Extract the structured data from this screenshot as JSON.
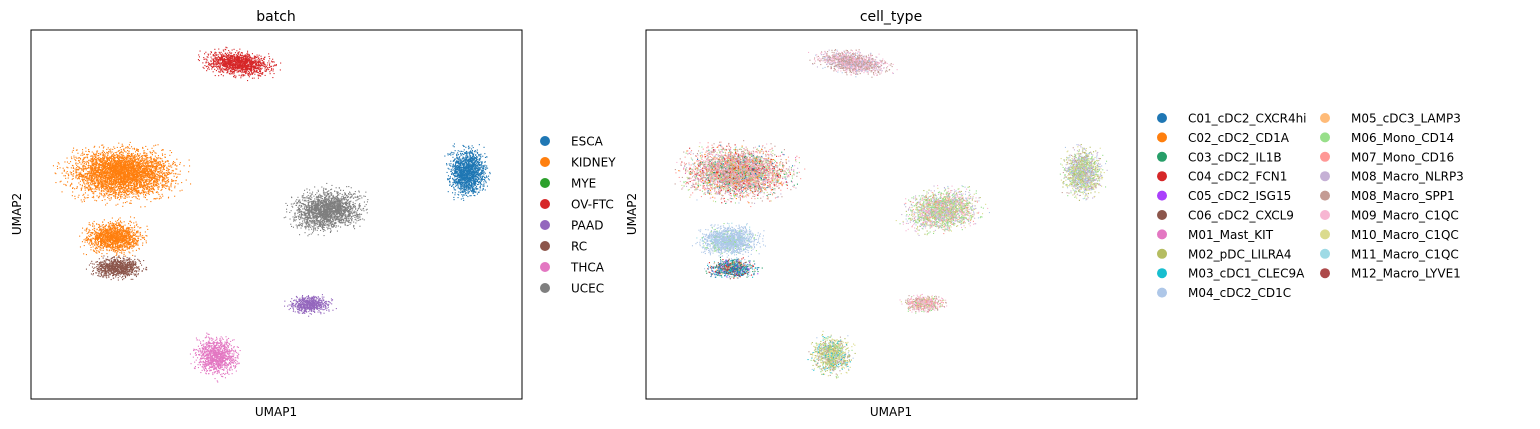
{
  "chart_data": [
    {
      "type": "scatter",
      "title": "batch",
      "xlabel": "UMAP1",
      "ylabel": "UMAP2",
      "ticks": "none",
      "legend_position": "right",
      "legend_columns": 1,
      "series": [
        {
          "name": "ESCA",
          "color": "#1f77b4"
        },
        {
          "name": "KIDNEY",
          "color": "#ff7f0e"
        },
        {
          "name": "MYE",
          "color": "#2ca02c"
        },
        {
          "name": "OV-FTC",
          "color": "#d62728"
        },
        {
          "name": "PAAD",
          "color": "#9467bd"
        },
        {
          "name": "RC",
          "color": "#8c564b"
        },
        {
          "name": "THCA",
          "color": "#e377c2"
        },
        {
          "name": "UCEC",
          "color": "#7f7f7f"
        }
      ]
    },
    {
      "type": "scatter",
      "title": "cell_type",
      "xlabel": "UMAP1",
      "ylabel": "UMAP2",
      "ticks": "none",
      "legend_position": "right",
      "legend_columns": 2,
      "series": [
        {
          "name": "C01_cDC2_CXCR4hi",
          "color": "#1f77b4"
        },
        {
          "name": "C02_cDC2_CD1A",
          "color": "#ff7f0e"
        },
        {
          "name": "C03_cDC2_IL1B",
          "color": "#279e68"
        },
        {
          "name": "C04_cDC2_FCN1",
          "color": "#d62728"
        },
        {
          "name": "C05_cDC2_ISG15",
          "color": "#aa40fc"
        },
        {
          "name": "C06_cDC2_CXCL9",
          "color": "#8c564b"
        },
        {
          "name": "M01_Mast_KIT",
          "color": "#e377c2"
        },
        {
          "name": "M02_pDC_LILRA4",
          "color": "#b5bd61"
        },
        {
          "name": "M03_cDC1_CLEC9A",
          "color": "#17becf"
        },
        {
          "name": "M04_cDC2_CD1C",
          "color": "#aec7e8"
        },
        {
          "name": "M05_cDC3_LAMP3",
          "color": "#ffbb78"
        },
        {
          "name": "M06_Mono_CD14",
          "color": "#98df8a"
        },
        {
          "name": "M07_Mono_CD16",
          "color": "#ff9896"
        },
        {
          "name": "M08_Macro_NLRP3",
          "color": "#c5b0d5"
        },
        {
          "name": "M08_Macro_SPP1",
          "color": "#c49c94"
        },
        {
          "name": "M09_Macro_C1QC",
          "color": "#f7b6d2"
        },
        {
          "name": "M10_Macro_C1QC",
          "color": "#dbdb8d"
        },
        {
          "name": "M11_Macro_C1QC",
          "color": "#9edae5"
        },
        {
          "name": "M12_Macro_LYVE1",
          "color": "#ad494a"
        }
      ]
    }
  ]
}
